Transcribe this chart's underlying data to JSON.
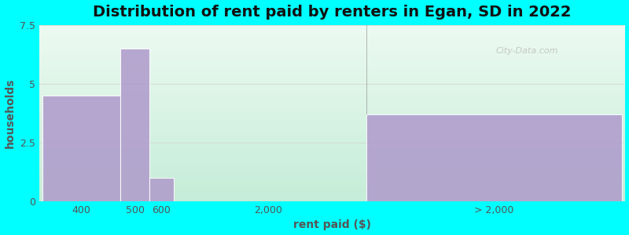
{
  "title": "Distribution of rent paid by renters in Egan, SD in 2022",
  "xlabel": "rent paid ($)",
  "ylabel": "households",
  "background_color": "#00FFFF",
  "bar_color": "#b09ccc",
  "categories": [
    "400",
    "500",
    "600",
    "2,000",
    "> 2,000"
  ],
  "values": [
    4.5,
    6.5,
    1.0,
    0.0,
    3.7
  ],
  "ylim": [
    0,
    7.5
  ],
  "yticks": [
    0,
    2.5,
    5,
    7.5
  ],
  "title_fontsize": 14,
  "axis_label_fontsize": 10,
  "tick_fontsize": 9,
  "watermark_text": "City-Data.com",
  "grid_color": "#d0d8d0",
  "bg_color_topleft": "#ddf5e8",
  "bg_color_topright": "#eef8ff",
  "bg_color_bottomleft": "#c8f0d8",
  "bg_color_bottomright": "#e0f4f8"
}
